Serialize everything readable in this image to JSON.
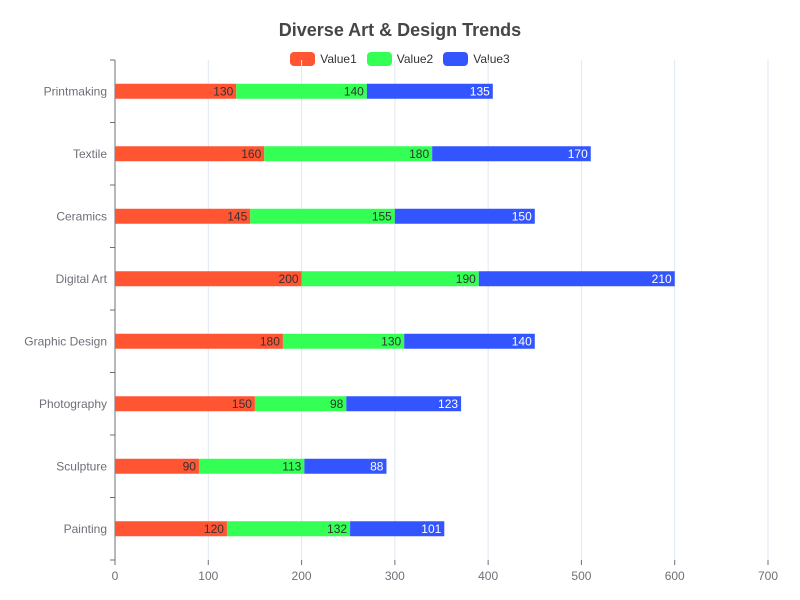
{
  "chart_data": {
    "type": "bar",
    "orientation": "horizontal",
    "stacked": true,
    "title": "Diverse Art & Design Trends",
    "categories": [
      "Painting",
      "Sculpture",
      "Photography",
      "Graphic Design",
      "Digital Art",
      "Ceramics",
      "Textile",
      "Printmaking"
    ],
    "series": [
      {
        "name": "Value1",
        "color": "#ff5533",
        "label_color": "#333333",
        "values": [
          120,
          90,
          150,
          180,
          200,
          145,
          160,
          130
        ]
      },
      {
        "name": "Value2",
        "color": "#33ff55",
        "label_color": "#333333",
        "values": [
          132,
          113,
          98,
          130,
          190,
          155,
          180,
          140
        ]
      },
      {
        "name": "Value3",
        "color": "#3355ff",
        "label_color": "#ffffff",
        "values": [
          101,
          88,
          123,
          140,
          210,
          150,
          170,
          135
        ]
      }
    ],
    "xlim": [
      0,
      700
    ],
    "xticks": [
      0,
      100,
      200,
      300,
      400,
      500,
      600,
      700
    ],
    "grid": true,
    "legend_position": "top-center"
  }
}
